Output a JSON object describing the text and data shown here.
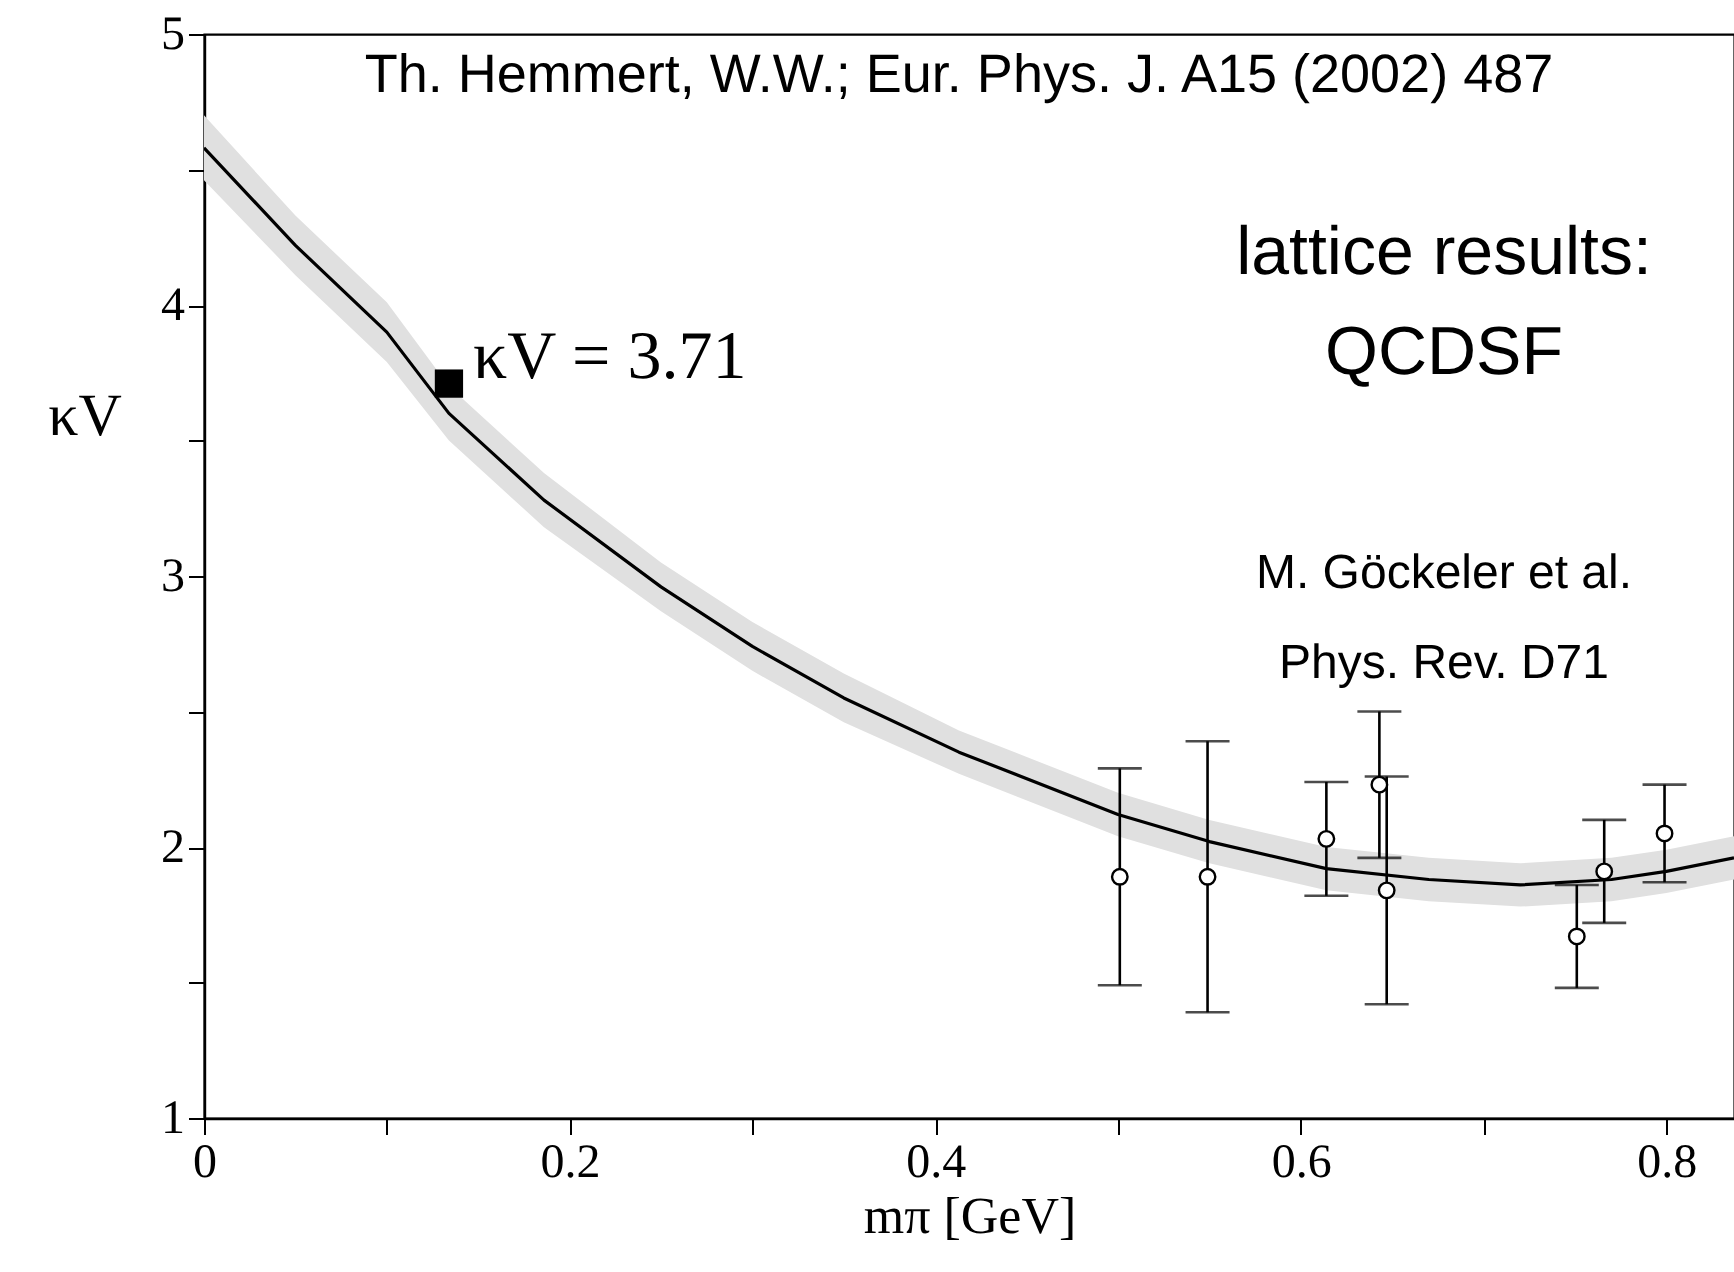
{
  "chart_data": {
    "type": "line",
    "title": "Th. Hemmert, W.W.;  Eur. Phys. J. A15 (2002) 487",
    "xlabel": "mπ [GeV]",
    "ylabel": "κV",
    "xlim": [
      0,
      0.837
    ],
    "ylim": [
      1,
      5
    ],
    "xticks": [
      0,
      {
        "value": 0.1,
        "label": null
      },
      0.2,
      {
        "value": 0.3,
        "label": null
      },
      0.4,
      {
        "value": 0.5,
        "label": null
      },
      0.6,
      {
        "value": 0.7,
        "label": null
      },
      0.8
    ],
    "yticks": [
      1,
      {
        "value": 1.5,
        "label": null
      },
      2,
      {
        "value": 2.5,
        "label": null
      },
      3,
      {
        "value": 3.5,
        "label": null
      },
      4,
      {
        "value": 4.5,
        "label": null
      },
      5
    ],
    "grid": false,
    "series": [
      {
        "type": "line",
        "color": "#000000",
        "marker": "none",
        "line_style": "solid",
        "x": [
          0,
          0.05,
          0.1,
          0.134,
          0.186,
          0.25,
          0.3,
          0.35,
          0.413,
          0.5,
          0.55,
          0.614,
          0.67,
          0.72,
          0.77,
          0.8,
          0.837
        ],
        "values": [
          4.58,
          4.22,
          3.9,
          3.6,
          3.28,
          2.96,
          2.74,
          2.55,
          2.35,
          2.12,
          2.02,
          1.92,
          1.88,
          1.86,
          1.88,
          1.91,
          1.96
        ],
        "lower": [
          4.46,
          4.11,
          3.79,
          3.5,
          3.18,
          2.87,
          2.65,
          2.46,
          2.27,
          2.04,
          1.94,
          1.84,
          1.8,
          1.78,
          1.8,
          1.83,
          1.88
        ],
        "upper": [
          4.7,
          4.33,
          4.01,
          3.7,
          3.38,
          3.05,
          2.83,
          2.64,
          2.43,
          2.2,
          2.1,
          2.0,
          1.96,
          1.94,
          1.96,
          1.99,
          2.04
        ]
      },
      {
        "type": "scatter",
        "color": "#000000",
        "marker": "circle",
        "x": [
          0.501,
          0.549,
          0.614,
          0.643,
          0.647,
          0.751,
          0.766,
          0.799
        ],
        "values": [
          1.89,
          1.89,
          2.03,
          2.23,
          1.84,
          1.67,
          1.91,
          2.05
        ],
        "errors": [
          [
            1.49,
            2.29
          ],
          [
            1.39,
            2.39
          ],
          [
            1.82,
            2.24
          ],
          [
            1.96,
            2.5
          ],
          [
            1.42,
            2.26
          ],
          [
            1.48,
            1.86
          ],
          [
            1.72,
            2.1
          ],
          [
            1.87,
            2.23
          ]
        ]
      },
      {
        "type": "scatter",
        "color": "#000000",
        "marker": "square",
        "x": [
          0.134
        ],
        "values": [
          3.71
        ]
      }
    ],
    "annotations": [
      {
        "text": "κV = 3.71",
        "x": 0.134,
        "y": 3.71
      },
      "lattice results:",
      "QCDSF",
      "M. Göckeler et al.",
      "Phys. Rev. D71"
    ]
  }
}
